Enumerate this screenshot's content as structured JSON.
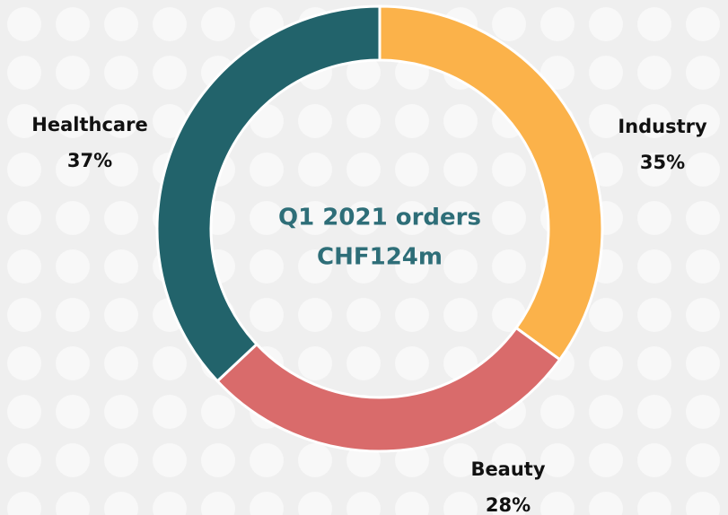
{
  "chart_data": {
    "type": "pie",
    "title": "Q1 2021 orders",
    "subtitle": "CHF124m",
    "categories": [
      "Industry",
      "Beauty",
      "Healthcare"
    ],
    "values": [
      35,
      28,
      37
    ],
    "value_labels": [
      "35%",
      "28%",
      "37%"
    ],
    "colors": [
      "#fbb24a",
      "#d96b6b",
      "#22636b"
    ],
    "donut": true
  }
}
